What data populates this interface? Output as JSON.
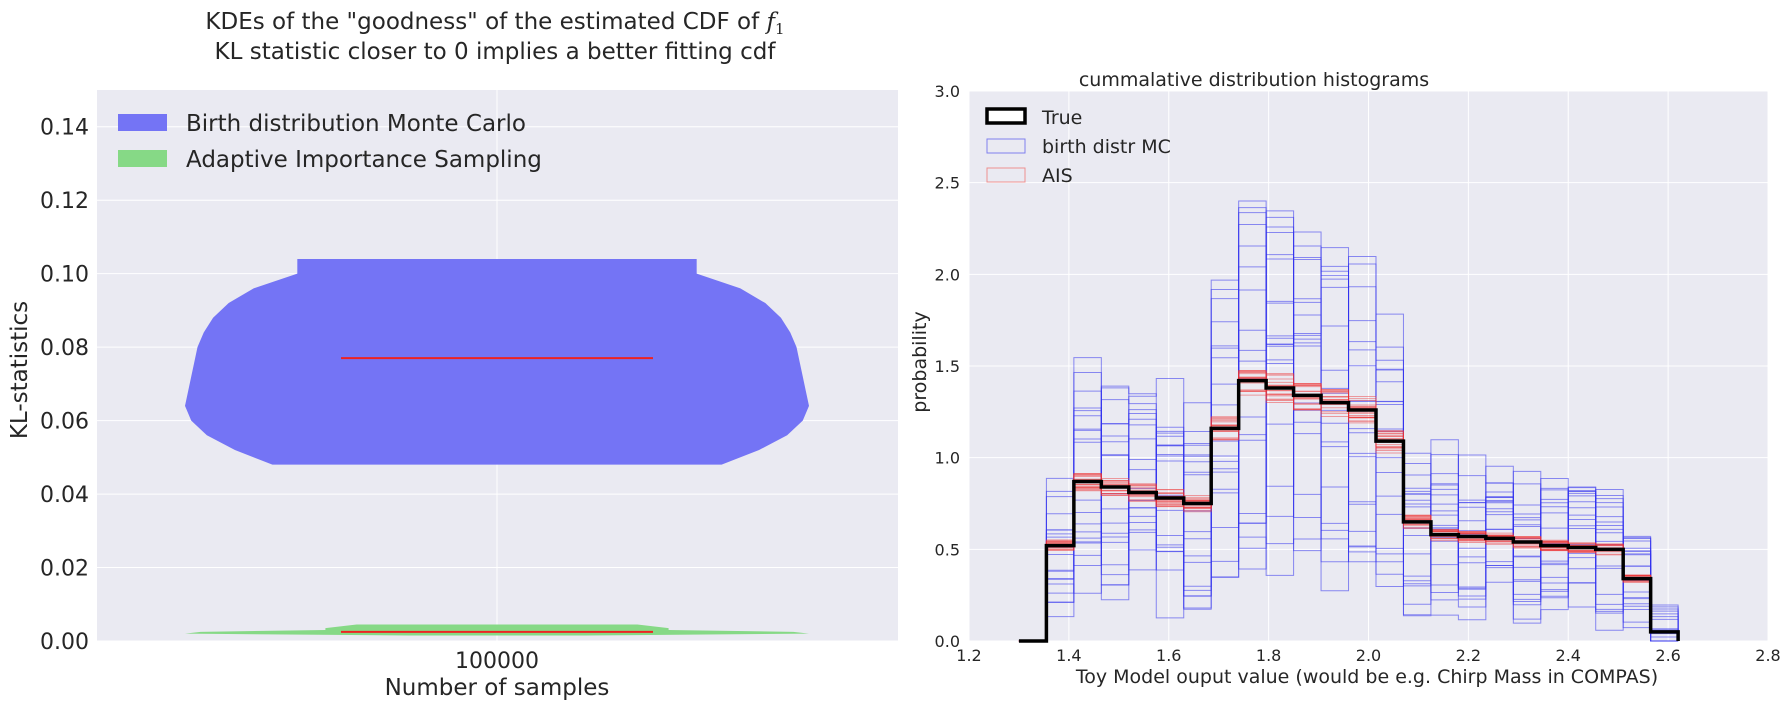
{
  "chart_data": [
    {
      "type": "violin",
      "title_line1": "KDEs of the \"goodness\" of the estimated CDF of",
      "title_symbol": "f",
      "title_subscript": "1",
      "title_line2": "KL statistic closer to 0 implies a better fitting cdf",
      "xlabel": "Number of samples",
      "ylabel": "KL-statistics",
      "categories": [
        "100000"
      ],
      "ylim": [
        0,
        0.15
      ],
      "yticks": [
        "0.00",
        "0.02",
        "0.04",
        "0.06",
        "0.08",
        "0.10",
        "0.12",
        "0.14"
      ],
      "legend_placement": "upper-left",
      "series": [
        {
          "name": "Birth distribution Monte Carlo",
          "color": "#7474f5",
          "min": 0.048,
          "max": 0.104,
          "mean": 0.077,
          "profile": [
            [
              0.048,
              0.72
            ],
            [
              0.052,
              0.84
            ],
            [
              0.056,
              0.93
            ],
            [
              0.06,
              0.98
            ],
            [
              0.064,
              1.0
            ],
            [
              0.068,
              0.99
            ],
            [
              0.072,
              0.98
            ],
            [
              0.076,
              0.97
            ],
            [
              0.08,
              0.96
            ],
            [
              0.084,
              0.94
            ],
            [
              0.088,
              0.91
            ],
            [
              0.092,
              0.86
            ],
            [
              0.096,
              0.78
            ],
            [
              0.1,
              0.64
            ],
            [
              0.104,
              0.64
            ]
          ]
        },
        {
          "name": "Adaptive Importance Sampling",
          "color": "#86d986",
          "min": 0.0015,
          "max": 0.0045,
          "mean": 0.0025,
          "profile": [
            [
              0.0015,
              0.28
            ],
            [
              0.002,
              1.0
            ],
            [
              0.0025,
              0.95
            ],
            [
              0.003,
              0.55
            ],
            [
              0.0035,
              0.55
            ],
            [
              0.0045,
              0.45
            ]
          ]
        }
      ]
    },
    {
      "type": "step-histogram",
      "title": "cummalative distribution histograms",
      "xlabel": "Toy Model ouput value (would be e.g. Chirp Mass in COMPAS)",
      "ylabel": "probability",
      "xlim": [
        1.2,
        2.8
      ],
      "ylim": [
        0,
        3.0
      ],
      "xticks": [
        "1.2",
        "1.4",
        "1.6",
        "1.8",
        "2.0",
        "2.2",
        "2.4",
        "2.6",
        "2.8"
      ],
      "yticks": [
        "0.0",
        "0.5",
        "1.0",
        "1.5",
        "2.0",
        "2.5",
        "3.0"
      ],
      "legend_placement": "upper-left",
      "bin_edges": [
        1.3,
        1.355,
        1.41,
        1.465,
        1.52,
        1.575,
        1.63,
        1.685,
        1.74,
        1.795,
        1.85,
        1.905,
        1.96,
        2.015,
        2.07,
        2.125,
        2.18,
        2.235,
        2.29,
        2.345,
        2.4,
        2.455,
        2.51,
        2.565,
        2.62
      ],
      "series": [
        {
          "name": "True",
          "color": "#000000",
          "values": [
            0.0,
            0.52,
            0.87,
            0.84,
            0.81,
            0.78,
            0.75,
            1.16,
            1.42,
            1.38,
            1.34,
            1.3,
            1.26,
            1.09,
            0.65,
            0.58,
            0.57,
            0.56,
            0.54,
            0.52,
            0.51,
            0.5,
            0.34,
            0.05
          ]
        },
        {
          "name": "birth distr MC",
          "color": "#3333ee",
          "values": [
            0.0,
            0.52,
            0.87,
            0.84,
            0.81,
            0.78,
            0.75,
            1.16,
            1.42,
            1.38,
            1.34,
            1.3,
            1.26,
            1.09,
            0.65,
            0.58,
            0.57,
            0.56,
            0.54,
            0.52,
            0.51,
            0.5,
            0.34,
            0.05
          ]
        },
        {
          "name": "AIS",
          "color": "#ee3333",
          "values": [
            0.0,
            0.52,
            0.87,
            0.84,
            0.81,
            0.78,
            0.75,
            1.16,
            1.42,
            1.38,
            1.34,
            1.3,
            1.26,
            1.09,
            0.65,
            0.58,
            0.57,
            0.56,
            0.54,
            0.52,
            0.51,
            0.5,
            0.34,
            0.05
          ]
        }
      ]
    }
  ],
  "colors": {
    "panel_background": "#eaeaf2",
    "grid": "#ffffff",
    "mean_line": "#ee2222"
  }
}
